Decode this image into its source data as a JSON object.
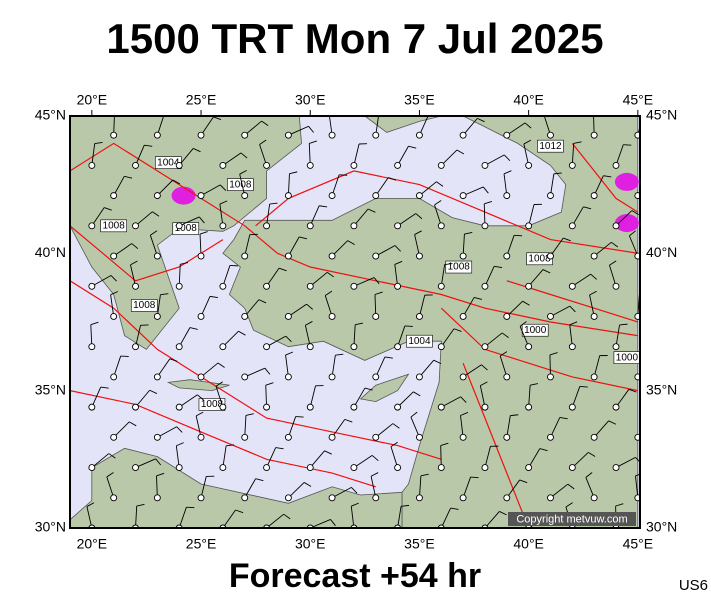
{
  "header": {
    "title": "1500 TRT Mon 7 Jul 2025"
  },
  "footer": {
    "title": "Forecast +54 hr",
    "code": "US6"
  },
  "map": {
    "copyright": "Copyright metvuw.com",
    "lon_ticks": [
      {
        "value": 20,
        "label": "20°E"
      },
      {
        "value": 25,
        "label": "25°E"
      },
      {
        "value": 30,
        "label": "30°E"
      },
      {
        "value": 35,
        "label": "35°E"
      },
      {
        "value": 40,
        "label": "40°E"
      },
      {
        "value": 45,
        "label": "45°E"
      }
    ],
    "lat_ticks": [
      {
        "value": 45,
        "label": "45°N"
      },
      {
        "value": 40,
        "label": "40°N"
      },
      {
        "value": 35,
        "label": "35°N"
      },
      {
        "value": 30,
        "label": "30°N"
      }
    ],
    "isobar_labels": [
      "1004",
      "1008",
      "1008",
      "1008",
      "1008",
      "1008",
      "1008",
      "1012",
      "1008",
      "1004",
      "1000",
      "1000"
    ]
  }
}
